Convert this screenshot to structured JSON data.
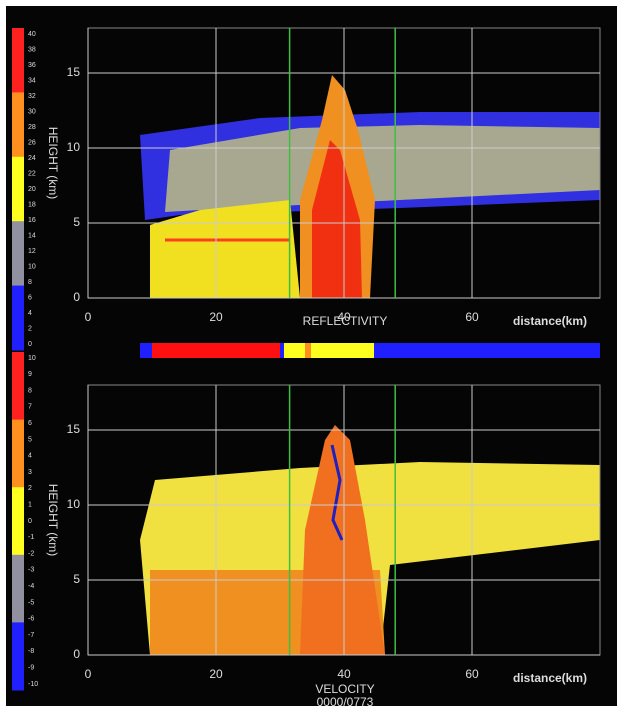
{
  "chart_data": [
    {
      "type": "heatmap",
      "title": "REFLECTIVITY",
      "xlabel": "distance(km)",
      "ylabel": "HEIGHT (km)",
      "xlim": [
        0,
        80
      ],
      "ylim": [
        0,
        18
      ],
      "xticks": [
        0,
        20,
        40,
        60
      ],
      "yticks": [
        0,
        5,
        10,
        15
      ],
      "grid": true,
      "markers": [
        31.5,
        48
      ],
      "marker_color": "#3fbf3f",
      "colorbar": {
        "ticks": [
          40,
          38,
          36,
          34,
          32,
          30,
          28,
          26,
          24,
          22,
          20,
          18,
          16,
          14,
          12,
          10,
          8,
          6,
          4,
          2,
          0
        ],
        "colors": [
          "#ff2020",
          "#ff9020",
          "#ffff20",
          "#9090a0",
          "#2020ff"
        ]
      }
    },
    {
      "type": "heatmap",
      "title": "VELOCITY",
      "subtitle": "0000/0773",
      "xlabel": "distance(km)",
      "ylabel": "HEIGHT (km)",
      "xlim": [
        0,
        80
      ],
      "ylim": [
        0,
        18
      ],
      "xticks": [
        0,
        20,
        40,
        60
      ],
      "yticks": [
        0,
        5,
        10,
        15
      ],
      "grid": true,
      "markers": [
        31.5,
        48
      ],
      "marker_color": "#3fbf3f",
      "colorbar": {
        "ticks": [
          10,
          9,
          8,
          7,
          6,
          5,
          4,
          3,
          2,
          1,
          0,
          -1,
          -2,
          -3,
          -4,
          -5,
          -6,
          -7,
          -8,
          -9,
          -10
        ],
        "colors": [
          "#ff2020",
          "#ff9020",
          "#ffff20",
          "#9090a0",
          "#2020ff"
        ]
      }
    }
  ]
}
